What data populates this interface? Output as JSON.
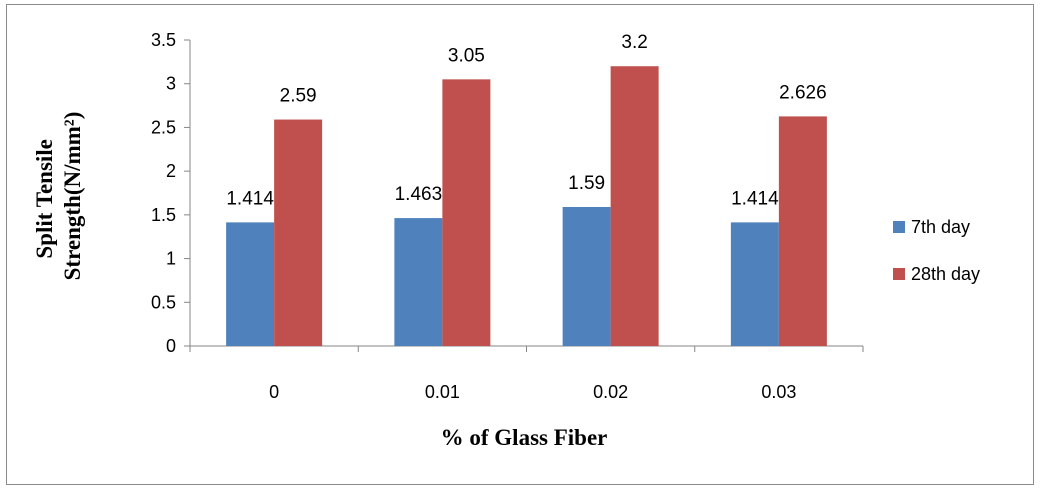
{
  "chart_data": {
    "type": "bar",
    "categories": [
      "0",
      "0.01",
      "0.02",
      "0.03"
    ],
    "series": [
      {
        "name": "7th day",
        "values": [
          1.414,
          1.463,
          1.59,
          1.414
        ],
        "color": "#4f81bd",
        "labels": [
          "1.414",
          "1.463",
          "1.59",
          "1.414"
        ]
      },
      {
        "name": "28th day",
        "values": [
          2.59,
          3.05,
          3.2,
          2.626
        ],
        "color": "#c0504d",
        "labels": [
          "2.59",
          "3.05",
          "3.2",
          "2.626"
        ]
      }
    ],
    "xlabel": "% of Glass Fiber",
    "ylabel_line1": "Split Tensile",
    "ylabel_line2": "Strength(N/mm²)",
    "ylim": [
      0,
      3.5
    ],
    "yticks": [
      "0",
      "0.5",
      "1",
      "1.5",
      "2",
      "2.5",
      "3",
      "3.5"
    ],
    "grid": false,
    "legend_position": "right"
  }
}
